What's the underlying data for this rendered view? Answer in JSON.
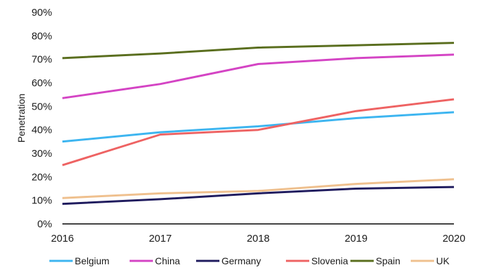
{
  "chart_data": {
    "type": "line",
    "ylabel": "Penetration",
    "xlabel": "",
    "x": [
      2016,
      2017,
      2018,
      2019,
      2020
    ],
    "x_tick_labels": [
      "2016",
      "2017",
      "2018",
      "2019",
      "2020"
    ],
    "ylim": [
      0,
      90
    ],
    "y_tick_labels": [
      "0%",
      "10%",
      "20%",
      "30%",
      "40%",
      "50%",
      "60%",
      "70%",
      "80%",
      "90%"
    ],
    "grid": false,
    "legend_position": "bottom",
    "series": [
      {
        "name": "Belgium",
        "color": "#3db5f0",
        "values": [
          35,
          39,
          41.5,
          45,
          47.5
        ]
      },
      {
        "name": "China",
        "color": "#d444c4",
        "values": [
          53.5,
          59.5,
          68,
          70.5,
          72
        ]
      },
      {
        "name": "Germany",
        "color": "#1f1b5e",
        "values": [
          8.5,
          10.5,
          13,
          15,
          15.7
        ]
      },
      {
        "name": "Slovenia",
        "color": "#ee6363",
        "values": [
          25,
          38,
          40,
          48,
          53
        ]
      },
      {
        "name": "Spain",
        "color": "#5a6e1e",
        "values": [
          70.5,
          72.5,
          75,
          76,
          77
        ]
      },
      {
        "name": "UK",
        "color": "#efc08e",
        "values": [
          11,
          13,
          14,
          17,
          19
        ]
      }
    ]
  }
}
